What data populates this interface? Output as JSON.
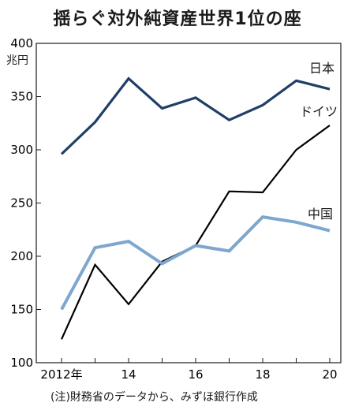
{
  "chart_data": {
    "type": "line",
    "title": "揺らぐ対外純資産世界1位の座",
    "unit": "兆円",
    "note": "(注)財務省のデータから、みずほ銀行作成",
    "x": [
      "2012",
      "2013",
      "2014",
      "2015",
      "2016",
      "2017",
      "2018",
      "2019",
      "2020"
    ],
    "xtick_labels": [
      "2012年",
      "",
      "14",
      "",
      "16",
      "",
      "18",
      "",
      "20"
    ],
    "yticks": [
      "100",
      "150",
      "200",
      "250",
      "300",
      "350",
      "400"
    ],
    "ylim": [
      100,
      400
    ],
    "grid": false,
    "series": [
      {
        "name": "日本",
        "color": "#1f3f66",
        "values": [
          296,
          326,
          367,
          339,
          349,
          328,
          342,
          365,
          357
        ]
      },
      {
        "name": "ドイツ",
        "color": "#000000",
        "values": [
          122,
          192,
          155,
          195,
          210,
          261,
          260,
          300,
          323
        ]
      },
      {
        "name": "中国",
        "color": "#7ea6cf",
        "values": [
          150,
          208,
          214,
          193,
          210,
          205,
          237,
          232,
          224
        ]
      }
    ]
  }
}
